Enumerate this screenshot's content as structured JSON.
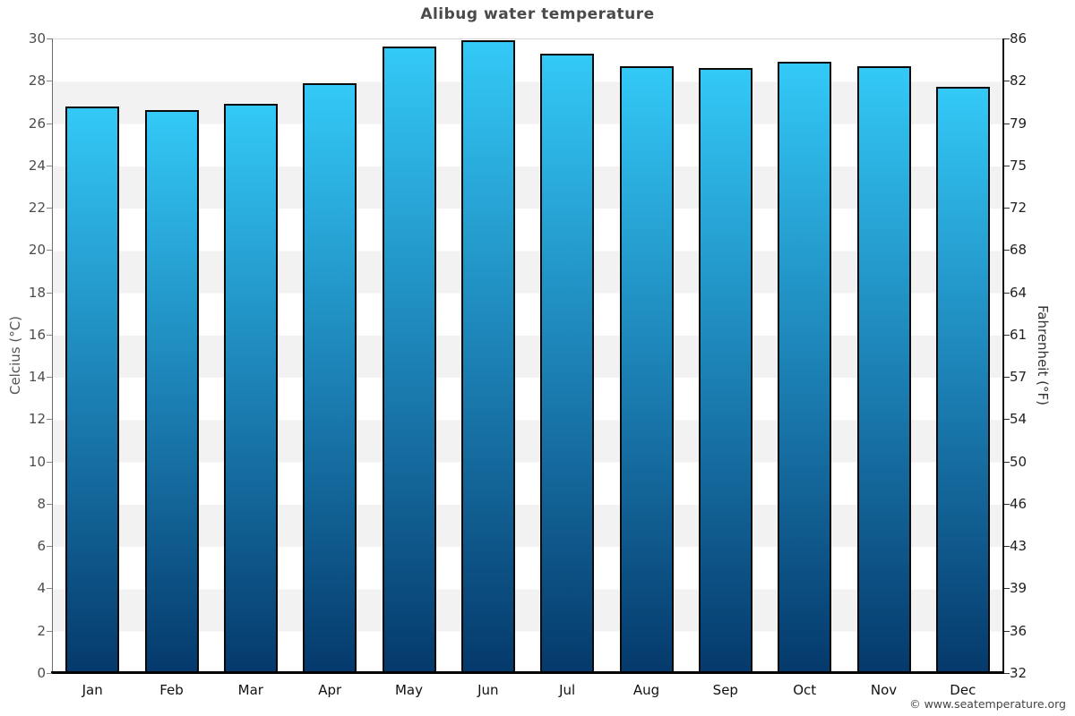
{
  "chart": {
    "title": "Alibug water temperature",
    "left_axis_title": "Celcius (°C)",
    "right_axis_title": "Fahrenheit (°F)",
    "copyright": "© www.seatemperature.org"
  },
  "chart_data": {
    "type": "bar",
    "title": "Alibug water temperature",
    "categories": [
      "Jan",
      "Feb",
      "Mar",
      "Apr",
      "May",
      "Jun",
      "Jul",
      "Aug",
      "Sep",
      "Oct",
      "Nov",
      "Dec"
    ],
    "values": [
      26.8,
      26.6,
      26.9,
      27.9,
      29.6,
      29.9,
      29.3,
      28.7,
      28.6,
      28.9,
      28.7,
      27.7
    ],
    "unit": "°C",
    "xlabel": "",
    "ylabel": "Celcius (°C)",
    "ylabel_right": "Fahrenheit (°F)",
    "ylim": [
      0,
      30
    ],
    "yticks": [
      0,
      2,
      4,
      6,
      8,
      10,
      12,
      14,
      16,
      18,
      20,
      22,
      24,
      26,
      28,
      30
    ],
    "yticks_right_labels": [
      "32",
      "36",
      "39",
      "43",
      "46",
      "50",
      "54",
      "57",
      "61",
      "64",
      "68",
      "72",
      "75",
      "79",
      "82",
      "86"
    ],
    "grid": "alternating horizontal bands every 2°C, no legend",
    "legend": null,
    "colors": {
      "bar_gradient_top": "#33c9f7",
      "bar_gradient_mid": "#1c81b5",
      "bar_gradient_bottom": "#05396b",
      "bar_border": "#0a0a0a",
      "band_gray": "#f2f2f2",
      "background": "#ffffff",
      "title_text": "#4a4a4a"
    }
  }
}
